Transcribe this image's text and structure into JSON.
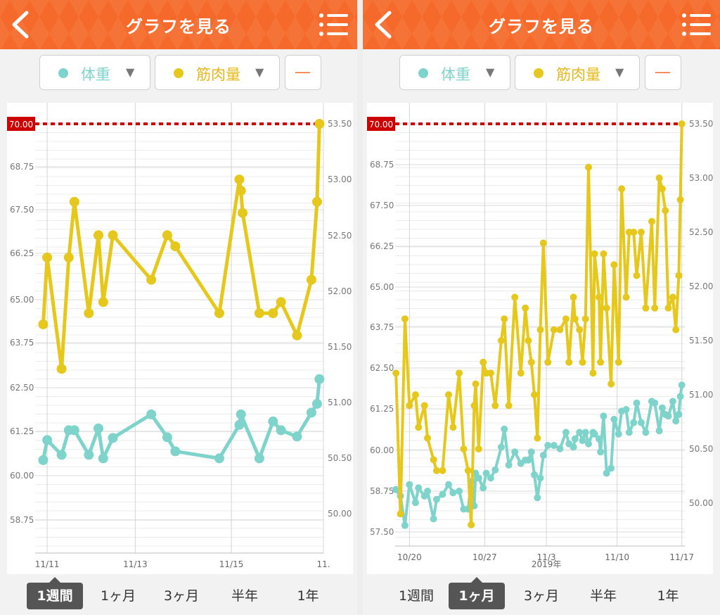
{
  "colors": {
    "header": "#f56a2a",
    "weight": "#7ed3ca",
    "muscle": "#e5c81b",
    "target_line": "#cc0000",
    "accent": "#f56a2a"
  },
  "screens": [
    {
      "title": "グラフを見る",
      "selectors": {
        "weight_label": "体重",
        "muscle_label": "筋肉量",
        "minus_label": "―"
      },
      "target_label": "70.00",
      "tabs": [
        "1週間",
        "1ヶ月",
        "3ヶ月",
        "半年",
        "1年"
      ],
      "active_tab": 0,
      "date_year": ""
    },
    {
      "title": "グラフを見る",
      "selectors": {
        "weight_label": "体重",
        "muscle_label": "筋肉量",
        "minus_label": "―"
      },
      "target_label": "70.00",
      "tabs": [
        "1週間",
        "1ヶ月",
        "3ヶ月",
        "半年",
        "1年"
      ],
      "active_tab": 1,
      "date_year": "2019年"
    }
  ],
  "chart_data": [
    {
      "type": "line",
      "title": "",
      "x_ticks": [
        "11/11",
        "11/13",
        "11/15",
        "11."
      ],
      "left_axis": {
        "label": "体重",
        "ticks": [
          "70.00",
          "68.75",
          "67.50",
          "66.25",
          "65.00",
          "63.75",
          "62.50",
          "61.25",
          "60.00",
          "58.75"
        ],
        "ylim": [
          58.25,
          70.0
        ]
      },
      "right_axis": {
        "label": "筋肉量",
        "ticks": [
          "53.50",
          "53.00",
          "52.50",
          "52.00",
          "51.50",
          "51.00",
          "50.50",
          "50.00"
        ],
        "ylim": [
          49.8,
          53.5
        ]
      },
      "target_value": 70.0,
      "series": [
        {
          "name": "体重",
          "axis": "left",
          "points": [
            [
              10.85,
              60.45
            ],
            [
              10.9,
              61.02
            ],
            [
              11.08,
              60.6
            ],
            [
              11.17,
              61.3
            ],
            [
              11.24,
              61.3
            ],
            [
              11.42,
              60.6
            ],
            [
              11.54,
              61.35
            ],
            [
              11.6,
              60.5
            ],
            [
              11.72,
              61.08
            ],
            [
              12.2,
              61.75
            ],
            [
              12.4,
              61.1
            ],
            [
              12.5,
              60.7
            ],
            [
              13.05,
              60.5
            ],
            [
              13.3,
              61.45
            ],
            [
              13.32,
              61.75
            ],
            [
              13.55,
              60.5
            ],
            [
              13.72,
              61.55
            ],
            [
              13.82,
              61.3
            ],
            [
              14.02,
              61.12
            ],
            [
              14.2,
              61.8
            ],
            [
              14.27,
              62.05
            ],
            [
              14.3,
              62.75
            ]
          ]
        },
        {
          "name": "筋肉量",
          "axis": "right",
          "points": [
            [
              10.85,
              51.7
            ],
            [
              10.9,
              52.3
            ],
            [
              11.08,
              51.3
            ],
            [
              11.17,
              52.3
            ],
            [
              11.24,
              52.8
            ],
            [
              11.42,
              51.8
            ],
            [
              11.54,
              52.5
            ],
            [
              11.6,
              51.9
            ],
            [
              11.72,
              52.5
            ],
            [
              12.2,
              52.1
            ],
            [
              12.4,
              52.5
            ],
            [
              12.5,
              52.4
            ],
            [
              13.05,
              51.8
            ],
            [
              13.3,
              53.0
            ],
            [
              13.32,
              52.9
            ],
            [
              13.34,
              52.7
            ],
            [
              13.55,
              51.8
            ],
            [
              13.72,
              51.8
            ],
            [
              13.82,
              51.9
            ],
            [
              14.02,
              51.6
            ],
            [
              14.2,
              52.1
            ],
            [
              14.27,
              52.8
            ],
            [
              14.3,
              53.5
            ]
          ]
        }
      ]
    },
    {
      "type": "line",
      "title": "",
      "x_ticks": [
        "10/20",
        "10/27",
        "11/3",
        "11/10",
        "11/17"
      ],
      "left_axis": {
        "label": "体重",
        "ticks": [
          "70.00",
          "68.75",
          "67.50",
          "66.25",
          "65.00",
          "63.75",
          "62.50",
          "61.25",
          "60.00",
          "58.75",
          "57.50"
        ],
        "ylim": [
          57.0,
          70.0
        ]
      },
      "right_axis": {
        "label": "筋肉量",
        "ticks": [
          "53.50",
          "53.00",
          "52.50",
          "52.00",
          "51.50",
          "51.00",
          "50.50",
          "50.00"
        ],
        "ylim": [
          49.75,
          53.5
        ]
      },
      "target_value": 70.0,
      "series": [
        {
          "name": "体重",
          "axis": "left",
          "points": [
            [
              0,
              58.8
            ],
            [
              0.3,
              58.6
            ],
            [
              0.6,
              57.7
            ],
            [
              0.9,
              58.95
            ],
            [
              1.3,
              58.4
            ],
            [
              1.5,
              58.85
            ],
            [
              1.9,
              58.6
            ],
            [
              2.1,
              58.75
            ],
            [
              2.5,
              57.9
            ],
            [
              2.7,
              58.5
            ],
            [
              3.1,
              58.65
            ],
            [
              3.5,
              58.95
            ],
            [
              3.8,
              58.7
            ],
            [
              4.2,
              58.75
            ],
            [
              4.5,
              58.2
            ],
            [
              4.8,
              58.2
            ],
            [
              5.0,
              59.05
            ],
            [
              5.2,
              58.3
            ],
            [
              5.3,
              59.3
            ],
            [
              5.5,
              59.15
            ],
            [
              5.8,
              58.85
            ],
            [
              6.0,
              59.3
            ],
            [
              6.3,
              59.15
            ],
            [
              6.6,
              59.4
            ],
            [
              7.0,
              60.1
            ],
            [
              7.2,
              60.65
            ],
            [
              7.5,
              59.55
            ],
            [
              7.9,
              59.95
            ],
            [
              8.3,
              59.6
            ],
            [
              8.6,
              59.7
            ],
            [
              8.8,
              59.7
            ],
            [
              9.0,
              59.95
            ],
            [
              9.2,
              59.25
            ],
            [
              9.4,
              58.55
            ],
            [
              9.6,
              59.15
            ],
            [
              9.8,
              59.85
            ],
            [
              10.1,
              60.15
            ],
            [
              10.5,
              60.15
            ],
            [
              10.9,
              60.05
            ],
            [
              11.3,
              60.55
            ],
            [
              11.5,
              60.2
            ],
            [
              11.8,
              60.1
            ],
            [
              11.9,
              60.35
            ],
            [
              12.2,
              60.55
            ],
            [
              12.4,
              60.3
            ],
            [
              12.6,
              60.55
            ],
            [
              12.8,
              60.2
            ],
            [
              13.1,
              60.55
            ],
            [
              13.2,
              60.5
            ],
            [
              13.5,
              60.35
            ],
            [
              13.6,
              59.95
            ],
            [
              13.8,
              61.05
            ],
            [
              14.0,
              59.3
            ],
            [
              14.3,
              59.45
            ],
            [
              14.5,
              60.95
            ],
            [
              14.8,
              60.5
            ],
            [
              15.0,
              61.2
            ],
            [
              15.3,
              61.25
            ],
            [
              15.5,
              60.55
            ],
            [
              15.8,
              60.85
            ],
            [
              16.0,
              61.45
            ],
            [
              16.3,
              60.85
            ],
            [
              16.6,
              60.55
            ],
            [
              17.0,
              61.5
            ],
            [
              17.2,
              61.45
            ],
            [
              17.5,
              60.6
            ],
            [
              17.7,
              61.3
            ],
            [
              17.9,
              61.1
            ],
            [
              18.1,
              61.05
            ],
            [
              18.4,
              61.5
            ],
            [
              18.6,
              60.9
            ],
            [
              18.8,
              61.1
            ],
            [
              18.9,
              61.65
            ],
            [
              19.0,
              62.0
            ]
          ]
        },
        {
          "name": "筋肉量",
          "axis": "right",
          "points": [
            [
              0,
              51.2
            ],
            [
              0.3,
              49.9
            ],
            [
              0.6,
              51.7
            ],
            [
              0.9,
              50.9
            ],
            [
              1.3,
              51.0
            ],
            [
              1.5,
              50.7
            ],
            [
              1.9,
              50.9
            ],
            [
              2.1,
              50.6
            ],
            [
              2.5,
              50.4
            ],
            [
              2.7,
              50.3
            ],
            [
              3.1,
              50.3
            ],
            [
              3.5,
              51.0
            ],
            [
              3.8,
              50.7
            ],
            [
              4.2,
              51.2
            ],
            [
              4.5,
              50.5
            ],
            [
              4.8,
              50.3
            ],
            [
              5.0,
              49.8
            ],
            [
              5.2,
              50.9
            ],
            [
              5.3,
              51.1
            ],
            [
              5.5,
              50.5
            ],
            [
              5.8,
              51.3
            ],
            [
              6.0,
              51.2
            ],
            [
              6.3,
              51.2
            ],
            [
              6.6,
              50.9
            ],
            [
              7.0,
              51.5
            ],
            [
              7.2,
              51.7
            ],
            [
              7.5,
              50.9
            ],
            [
              7.9,
              51.9
            ],
            [
              8.3,
              51.2
            ],
            [
              8.6,
              51.8
            ],
            [
              8.8,
              51.5
            ],
            [
              9.0,
              51.3
            ],
            [
              9.2,
              51.0
            ],
            [
              9.4,
              50.6
            ],
            [
              9.6,
              51.6
            ],
            [
              9.8,
              52.4
            ],
            [
              10.1,
              51.3
            ],
            [
              10.5,
              51.6
            ],
            [
              10.9,
              51.6
            ],
            [
              11.3,
              51.7
            ],
            [
              11.5,
              51.3
            ],
            [
              11.8,
              51.9
            ],
            [
              11.9,
              51.7
            ],
            [
              12.2,
              51.6
            ],
            [
              12.4,
              51.3
            ],
            [
              12.6,
              51.7
            ],
            [
              12.8,
              53.1
            ],
            [
              13.1,
              51.2
            ],
            [
              13.2,
              52.3
            ],
            [
              13.5,
              51.9
            ],
            [
              13.6,
              51.3
            ],
            [
              13.8,
              52.3
            ],
            [
              14.0,
              51.8
            ],
            [
              14.3,
              51.1
            ],
            [
              14.5,
              52.2
            ],
            [
              14.8,
              51.3
            ],
            [
              15.0,
              52.9
            ],
            [
              15.3,
              51.9
            ],
            [
              15.5,
              52.5
            ],
            [
              15.8,
              52.5
            ],
            [
              16.0,
              52.1
            ],
            [
              16.3,
              52.5
            ],
            [
              16.6,
              51.8
            ],
            [
              17.0,
              52.6
            ],
            [
              17.2,
              51.8
            ],
            [
              17.5,
              53.0
            ],
            [
              17.7,
              52.9
            ],
            [
              17.9,
              52.7
            ],
            [
              18.1,
              51.8
            ],
            [
              18.4,
              51.9
            ],
            [
              18.6,
              51.6
            ],
            [
              18.8,
              52.1
            ],
            [
              18.9,
              52.8
            ],
            [
              19.0,
              53.5
            ]
          ]
        }
      ]
    }
  ]
}
